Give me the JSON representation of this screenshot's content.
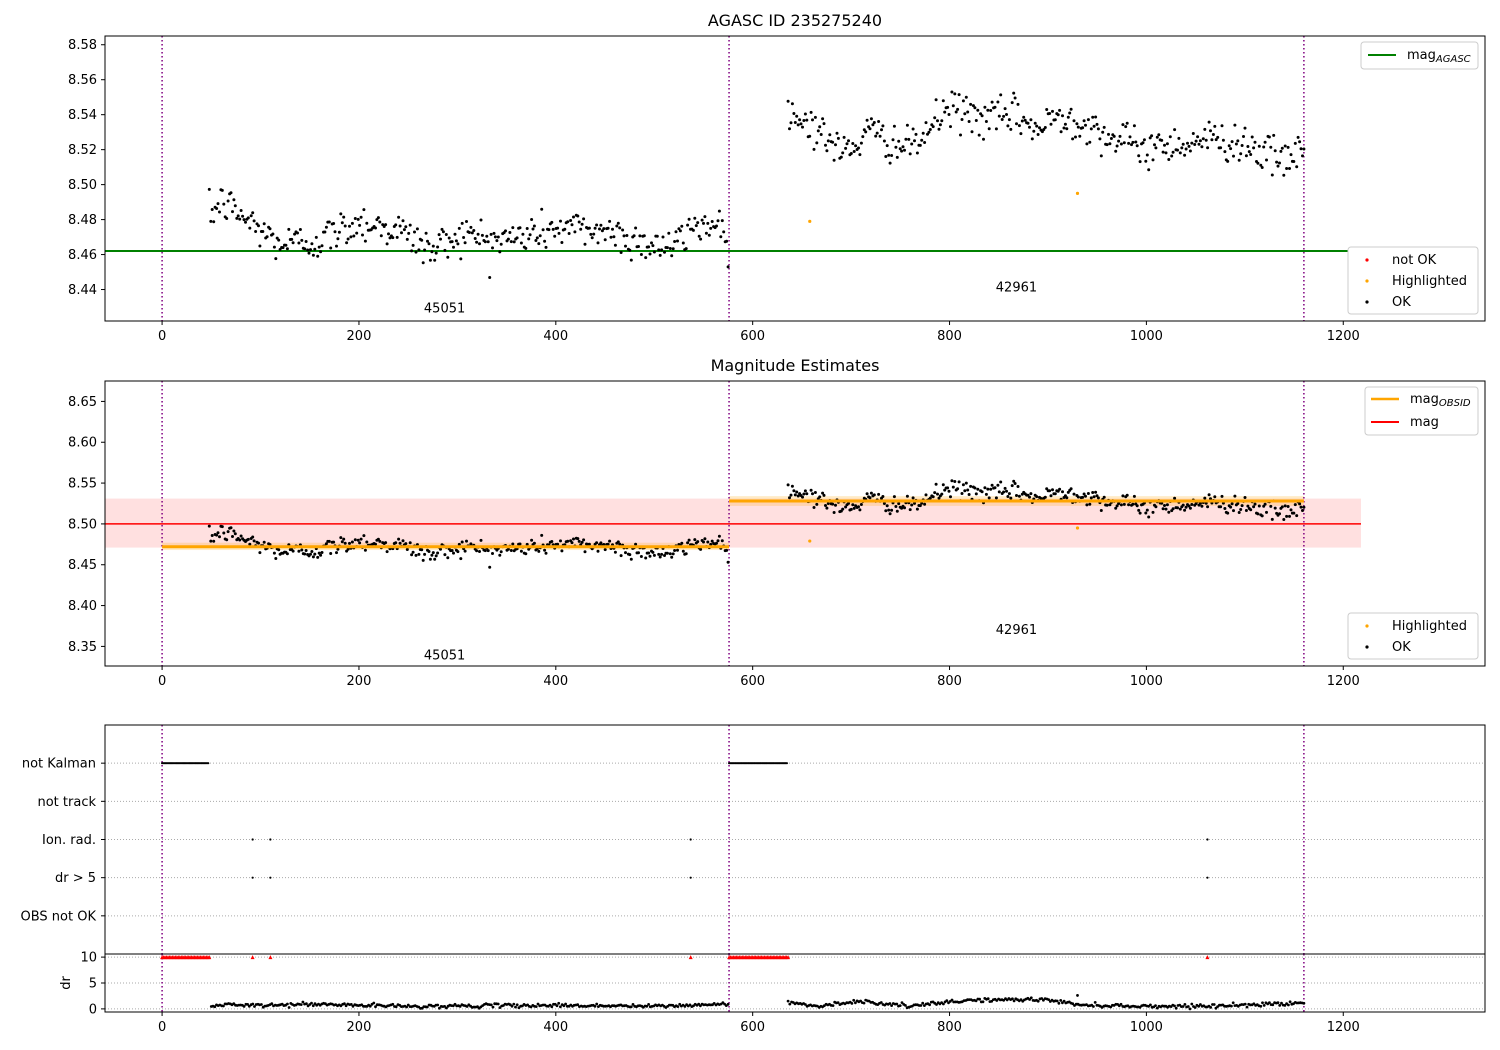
{
  "chart_data": [
    {
      "type": "scatter",
      "title": "AGASC ID 235275240",
      "xlim": [
        -58,
        1344
      ],
      "ylim": [
        8.422,
        8.585
      ],
      "xticks": [
        0,
        200,
        400,
        600,
        800,
        1000,
        1200
      ],
      "yticks": [
        8.44,
        8.46,
        8.48,
        8.5,
        8.52,
        8.54,
        8.56,
        8.58
      ],
      "ytick_decimals": 2,
      "obs_boundaries": [
        0,
        576,
        1160
      ],
      "obsids": [
        {
          "label": "45051",
          "x": 287,
          "y": 8.427
        },
        {
          "label": "42961",
          "x": 868,
          "y": 8.439
        }
      ],
      "mag_agasc": 8.462,
      "highlighted": [
        {
          "x": 658,
          "y": 8.479
        },
        {
          "x": 930,
          "y": 8.495
        }
      ],
      "ok_segments": [
        {
          "x_start": 48,
          "x_end": 575,
          "n": 360,
          "noise": 0.0055,
          "knots": [
            [
              48,
              8.482
            ],
            [
              60,
              8.49
            ],
            [
              70,
              8.487
            ],
            [
              90,
              8.478
            ],
            [
              120,
              8.466
            ],
            [
              160,
              8.468
            ],
            [
              200,
              8.479
            ],
            [
              240,
              8.474
            ],
            [
              275,
              8.462
            ],
            [
              300,
              8.472
            ],
            [
              345,
              8.468
            ],
            [
              400,
              8.475
            ],
            [
              450,
              8.474
            ],
            [
              480,
              8.468
            ],
            [
              520,
              8.464
            ],
            [
              545,
              8.478
            ],
            [
              575,
              8.476
            ]
          ]
        },
        {
          "x_start": 636,
          "x_end": 1160,
          "n": 360,
          "noise": 0.0055,
          "knots": [
            [
              636,
              8.54
            ],
            [
              660,
              8.535
            ],
            [
              690,
              8.518
            ],
            [
              720,
              8.53
            ],
            [
              760,
              8.52
            ],
            [
              800,
              8.544
            ],
            [
              840,
              8.537
            ],
            [
              870,
              8.54
            ],
            [
              890,
              8.53
            ],
            [
              910,
              8.54
            ],
            [
              940,
              8.535
            ],
            [
              970,
              8.525
            ],
            [
              1000,
              8.521
            ],
            [
              1060,
              8.526
            ],
            [
              1100,
              8.524
            ],
            [
              1140,
              8.512
            ],
            [
              1160,
              8.522
            ]
          ]
        }
      ],
      "legends": [
        {
          "position": "upper-right",
          "entries": [
            {
              "label": "mag",
              "sub": "AGASC",
              "kind": "line",
              "color": "#008000"
            }
          ]
        },
        {
          "position": "lower-right",
          "entries": [
            {
              "label": "not OK",
              "kind": "marker",
              "color": "#ff0000"
            },
            {
              "label": "Highlighted",
              "kind": "marker",
              "color": "#ffa500"
            },
            {
              "label": "OK",
              "kind": "marker",
              "color": "#000000"
            }
          ]
        }
      ]
    },
    {
      "type": "scatter",
      "title": "Magnitude Estimates",
      "xlim": [
        -58,
        1344
      ],
      "ylim": [
        8.326,
        8.675
      ],
      "xticks": [
        0,
        200,
        400,
        600,
        800,
        1000,
        1200
      ],
      "yticks": [
        8.35,
        8.4,
        8.45,
        8.5,
        8.55,
        8.6,
        8.65
      ],
      "ytick_decimals": 2,
      "obs_boundaries": [
        0,
        576,
        1160
      ],
      "obsids": [
        {
          "label": "45051",
          "x": 287,
          "y": 8.334
        },
        {
          "label": "42961",
          "x": 868,
          "y": 8.365
        }
      ],
      "mag": 8.5,
      "mag_band": [
        8.471,
        8.531
      ],
      "mag_band_x": [
        -58,
        1218
      ],
      "mag_obsid": [
        {
          "x_start": 0,
          "x_end": 576,
          "value": 8.472,
          "band": [
            8.468,
            8.477
          ]
        },
        {
          "x_start": 576,
          "x_end": 1160,
          "value": 8.528,
          "band": [
            8.522,
            8.534
          ]
        }
      ],
      "highlighted": [
        {
          "x": 658,
          "y": 8.479
        },
        {
          "x": 930,
          "y": 8.495
        }
      ],
      "legends": [
        {
          "position": "upper-right",
          "entries": [
            {
              "label": "mag",
              "sub": "OBSID",
              "kind": "line",
              "color": "#ffa500"
            },
            {
              "label": "mag",
              "kind": "line",
              "color": "#ff0000"
            }
          ]
        },
        {
          "position": "lower-right",
          "entries": [
            {
              "label": "Highlighted",
              "kind": "marker",
              "color": "#ffa500"
            },
            {
              "label": "OK",
              "kind": "marker",
              "color": "#000000"
            }
          ]
        }
      ]
    },
    {
      "type": "scatter",
      "xlim": [
        -58,
        1344
      ],
      "flags": [
        "not Kalman",
        "not track",
        "Ion. rad.",
        "dr > 5",
        "OBS not OK"
      ],
      "obs_boundaries": [
        0,
        576,
        1160
      ],
      "not_kalman_ranges": [
        [
          0,
          48
        ],
        [
          576,
          636
        ]
      ],
      "ion_rad_x": [
        92,
        110,
        537,
        1062
      ],
      "dr_gt5_x": [
        92,
        110,
        537,
        1062
      ]
    },
    {
      "type": "scatter",
      "xlim": [
        -58,
        1344
      ],
      "ylim": [
        -0.6,
        10.6
      ],
      "ylabel": "dr",
      "xticks": [
        0,
        200,
        400,
        600,
        800,
        1000,
        1200
      ],
      "yticks": [
        0,
        5,
        10
      ],
      "obs_boundaries": [
        0,
        576,
        1160
      ],
      "dr_clipped_ranges": [
        [
          0,
          48
        ],
        [
          576,
          636
        ]
      ],
      "dr_clipped_x": [
        92,
        110,
        537,
        1062
      ],
      "dr_segments": [
        {
          "x_start": 50,
          "x_end": 575,
          "n": 300,
          "knots": [
            [
              50,
              0.3
            ],
            [
              60,
              0.9
            ],
            [
              90,
              0.6
            ],
            [
              150,
              0.9
            ],
            [
              250,
              0.5
            ],
            [
              400,
              0.7
            ],
            [
              500,
              0.5
            ],
            [
              575,
              0.9
            ]
          ]
        },
        {
          "x_start": 636,
          "x_end": 1160,
          "n": 300,
          "knots": [
            [
              636,
              1.5
            ],
            [
              660,
              0.5
            ],
            [
              710,
              1.5
            ],
            [
              760,
              0.5
            ],
            [
              820,
              1.7
            ],
            [
              900,
              1.8
            ],
            [
              930,
              0.8
            ],
            [
              1000,
              0.5
            ],
            [
              1080,
              0.6
            ],
            [
              1160,
              1.2
            ]
          ]
        }
      ],
      "dr_outliers": [
        {
          "x": 930,
          "y": 2.6
        }
      ]
    }
  ]
}
